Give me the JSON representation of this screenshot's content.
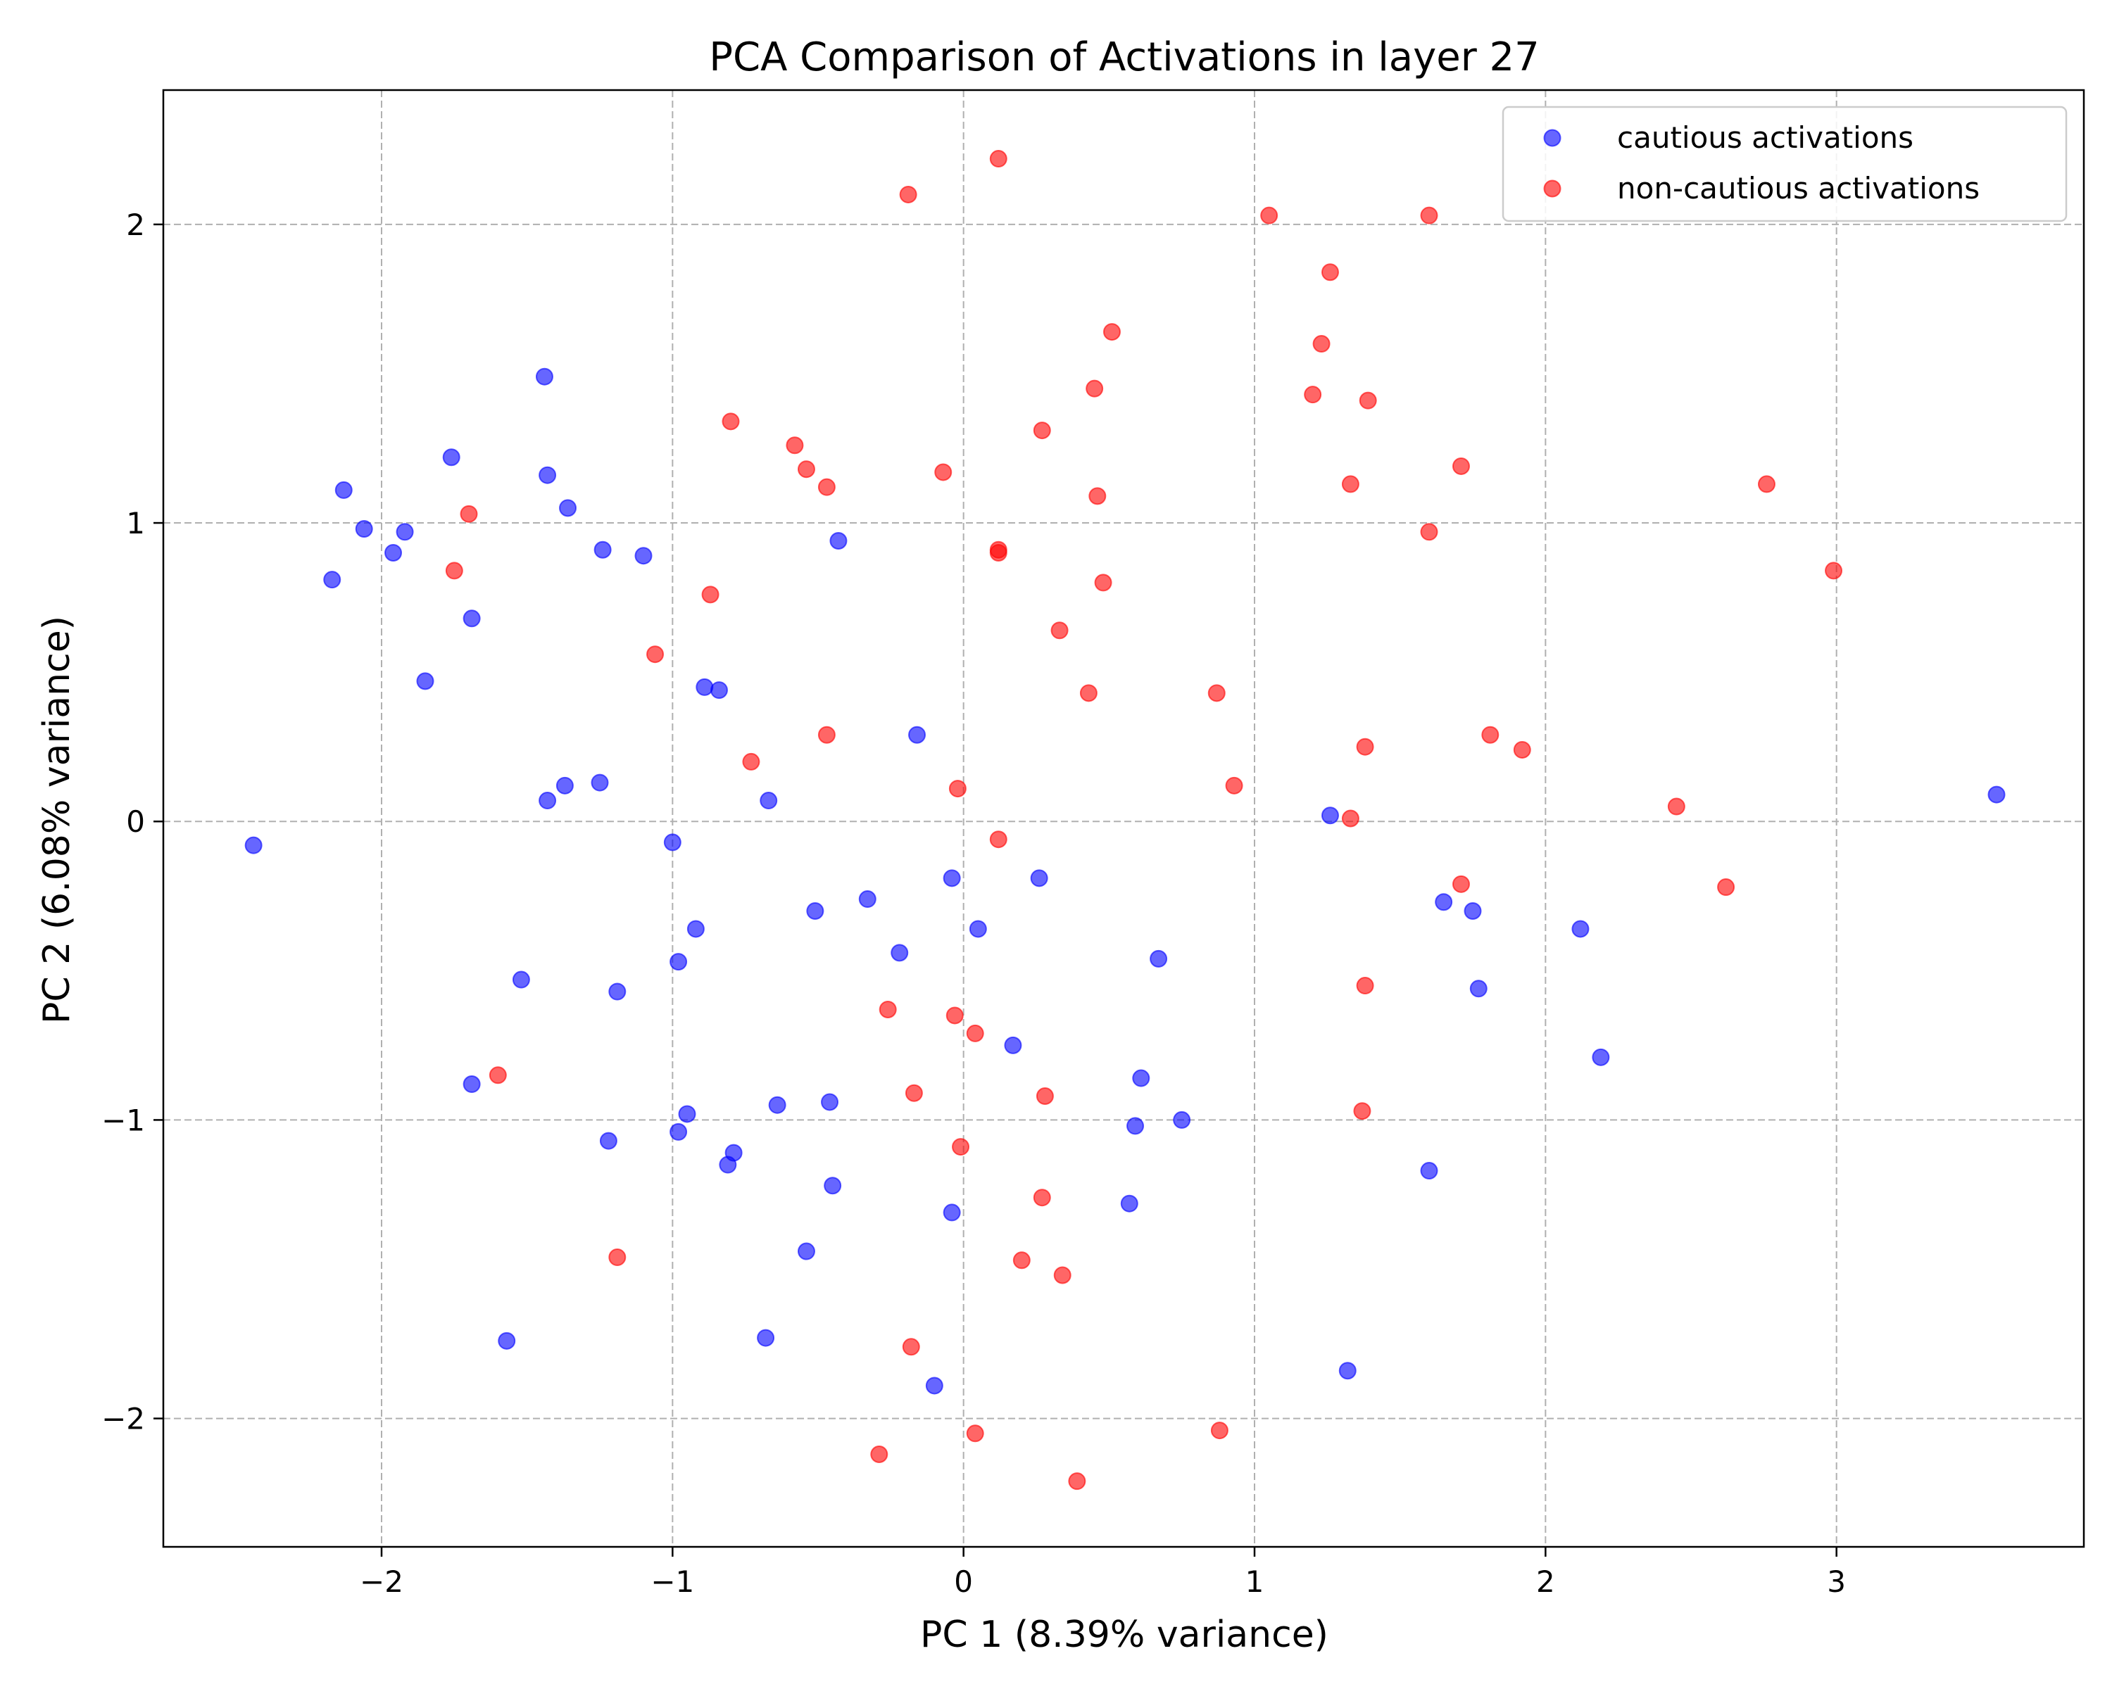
{
  "chart_data": {
    "type": "scatter",
    "title": "PCA Comparison of Activations in layer 27",
    "xlabel": "PC 1 (8.39% variance)",
    "ylabel": "PC 2 (6.08% variance)",
    "xlim": [
      -2.75,
      3.85
    ],
    "ylim": [
      -2.43,
      2.45
    ],
    "xticks": [
      -2,
      -1,
      0,
      1,
      2,
      3
    ],
    "yticks": [
      -2,
      -1,
      0,
      1,
      2
    ],
    "xtick_labels": [
      "−2",
      "−1",
      "0",
      "1",
      "2",
      "3"
    ],
    "ytick_labels": [
      "−2",
      "−1",
      "0",
      "1",
      "2"
    ],
    "grid": true,
    "legend_position": "top-right",
    "series": [
      {
        "name": "cautious activations",
        "color": "#0000ff",
        "points": [
          [
            -2.44,
            -0.08
          ],
          [
            -2.17,
            0.81
          ],
          [
            -2.13,
            1.11
          ],
          [
            -2.06,
            0.98
          ],
          [
            -1.96,
            0.9
          ],
          [
            -1.92,
            0.97
          ],
          [
            -1.85,
            0.47
          ],
          [
            -1.76,
            1.22
          ],
          [
            -1.69,
            0.68
          ],
          [
            -1.69,
            -0.88
          ],
          [
            -1.57,
            -1.74
          ],
          [
            -1.52,
            -0.53
          ],
          [
            -1.44,
            1.49
          ],
          [
            -1.43,
            1.16
          ],
          [
            -1.43,
            0.07
          ],
          [
            -1.37,
            0.12
          ],
          [
            -1.36,
            1.05
          ],
          [
            -1.25,
            0.13
          ],
          [
            -1.24,
            0.91
          ],
          [
            -1.22,
            -1.07
          ],
          [
            -1.19,
            -0.57
          ],
          [
            -1.1,
            0.89
          ],
          [
            -1.0,
            -0.07
          ],
          [
            -0.98,
            -0.47
          ],
          [
            -0.98,
            -1.04
          ],
          [
            -0.95,
            -0.98
          ],
          [
            -0.92,
            -0.36
          ],
          [
            -0.89,
            0.45
          ],
          [
            -0.84,
            0.44
          ],
          [
            -0.81,
            -1.15
          ],
          [
            -0.79,
            -1.11
          ],
          [
            -0.67,
            0.07
          ],
          [
            -0.68,
            -1.73
          ],
          [
            -0.64,
            -0.95
          ],
          [
            -0.54,
            -1.44
          ],
          [
            -0.51,
            -0.3
          ],
          [
            -0.46,
            -0.94
          ],
          [
            -0.45,
            -1.22
          ],
          [
            -0.43,
            0.94
          ],
          [
            -0.33,
            -0.26
          ],
          [
            -0.22,
            -0.44
          ],
          [
            -0.16,
            0.29
          ],
          [
            -0.1,
            -1.89
          ],
          [
            -0.04,
            -0.19
          ],
          [
            -0.04,
            -1.31
          ],
          [
            0.05,
            -0.36
          ],
          [
            0.17,
            -0.75
          ],
          [
            0.26,
            -0.19
          ],
          [
            0.57,
            -1.28
          ],
          [
            0.59,
            -1.02
          ],
          [
            0.61,
            -0.86
          ],
          [
            0.67,
            -0.46
          ],
          [
            0.75,
            -1.0
          ],
          [
            1.26,
            0.02
          ],
          [
            1.32,
            -1.84
          ],
          [
            1.6,
            -1.17
          ],
          [
            1.65,
            -0.27
          ],
          [
            1.75,
            -0.3
          ],
          [
            1.77,
            -0.56
          ],
          [
            2.12,
            -0.36
          ],
          [
            2.19,
            -0.79
          ],
          [
            3.55,
            0.09
          ]
        ]
      },
      {
        "name": "non-cautious activations",
        "color": "#ff0000",
        "points": [
          [
            -1.7,
            1.03
          ],
          [
            -1.75,
            0.84
          ],
          [
            -1.6,
            -0.85
          ],
          [
            -1.19,
            -1.46
          ],
          [
            -1.06,
            0.56
          ],
          [
            -0.87,
            0.76
          ],
          [
            -0.8,
            1.34
          ],
          [
            -0.73,
            0.2
          ],
          [
            -0.58,
            1.26
          ],
          [
            -0.54,
            1.18
          ],
          [
            -0.47,
            1.12
          ],
          [
            -0.47,
            0.29
          ],
          [
            -0.29,
            -2.12
          ],
          [
            -0.26,
            -0.63
          ],
          [
            -0.19,
            2.1
          ],
          [
            -0.18,
            -1.76
          ],
          [
            -0.17,
            -0.91
          ],
          [
            -0.07,
            1.17
          ],
          [
            -0.03,
            -0.65
          ],
          [
            -0.02,
            0.11
          ],
          [
            -0.01,
            -1.09
          ],
          [
            0.04,
            -0.71
          ],
          [
            0.04,
            -2.05
          ],
          [
            0.12,
            2.22
          ],
          [
            0.12,
            0.91
          ],
          [
            0.12,
            0.9
          ],
          [
            0.12,
            -0.06
          ],
          [
            0.2,
            -1.47
          ],
          [
            0.27,
            1.31
          ],
          [
            0.27,
            -1.26
          ],
          [
            0.28,
            -0.92
          ],
          [
            0.33,
            0.64
          ],
          [
            0.34,
            -1.52
          ],
          [
            0.39,
            -2.21
          ],
          [
            0.43,
            0.43
          ],
          [
            0.45,
            1.45
          ],
          [
            0.46,
            1.09
          ],
          [
            0.48,
            0.8
          ],
          [
            0.51,
            1.64
          ],
          [
            0.87,
            0.43
          ],
          [
            0.88,
            -2.04
          ],
          [
            0.93,
            0.12
          ],
          [
            1.05,
            2.03
          ],
          [
            1.2,
            1.43
          ],
          [
            1.23,
            1.6
          ],
          [
            1.26,
            1.84
          ],
          [
            1.33,
            1.13
          ],
          [
            1.33,
            0.01
          ],
          [
            1.37,
            -0.97
          ],
          [
            1.38,
            -0.55
          ],
          [
            1.38,
            0.25
          ],
          [
            1.39,
            1.41
          ],
          [
            1.6,
            2.03
          ],
          [
            1.6,
            0.97
          ],
          [
            1.71,
            1.19
          ],
          [
            1.71,
            -0.21
          ],
          [
            1.81,
            0.29
          ],
          [
            1.92,
            0.24
          ],
          [
            2.45,
            0.05
          ],
          [
            2.62,
            -0.22
          ],
          [
            2.76,
            1.13
          ],
          [
            2.99,
            0.84
          ]
        ]
      }
    ]
  }
}
